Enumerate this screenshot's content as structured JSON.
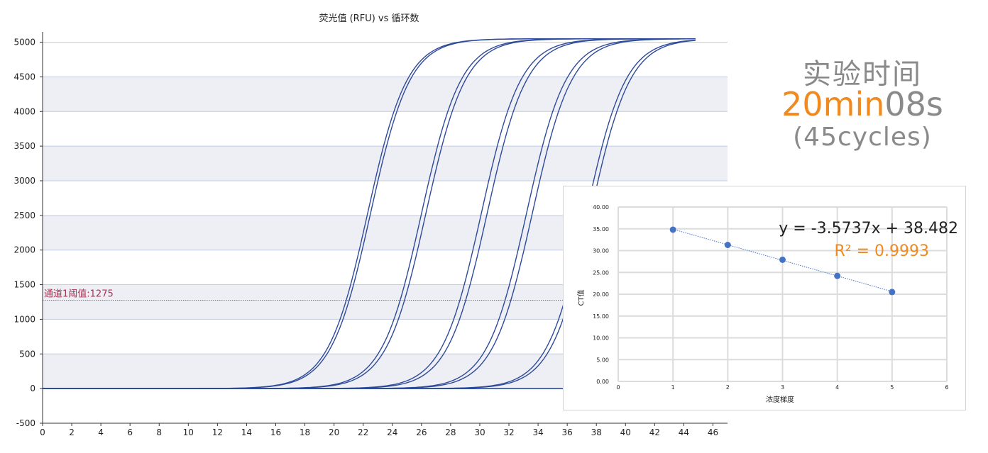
{
  "chart_data": [
    {
      "type": "line",
      "title": "荧光值 (RFU) vs 循环数",
      "xlabel": "",
      "ylabel": "",
      "xlim": [
        0,
        47
      ],
      "ylim": [
        -500,
        5200
      ],
      "x_ticks": [
        0,
        2,
        4,
        6,
        8,
        10,
        12,
        14,
        16,
        18,
        20,
        22,
        24,
        26,
        28,
        30,
        32,
        34,
        36,
        38,
        40,
        42,
        44,
        46
      ],
      "y_ticks": [
        -500,
        0,
        500,
        1000,
        1500,
        2000,
        2500,
        3000,
        3500,
        4000,
        4500,
        5000
      ],
      "grid": "horizontal",
      "line_color": "#2e4a9b",
      "threshold": {
        "label": "通道1阈值:1275",
        "value": 1275,
        "color": "#b03050"
      },
      "series_note": "10 amplification curves (5 duplicate pairs), cycles 0-45",
      "series": [
        {
          "midpoint": 22.3,
          "plateau": 5050
        },
        {
          "midpoint": 22.5,
          "plateau": 5050
        },
        {
          "midpoint": 26.0,
          "plateau": 5050
        },
        {
          "midpoint": 26.3,
          "plateau": 5050
        },
        {
          "midpoint": 30.1,
          "plateau": 5050
        },
        {
          "midpoint": 30.5,
          "plateau": 5050
        },
        {
          "midpoint": 33.2,
          "plateau": 5050
        },
        {
          "midpoint": 33.6,
          "plateau": 5050
        },
        {
          "midpoint": 37.3,
          "plateau": 5050
        },
        {
          "midpoint": 37.6,
          "plateau": 5050
        }
      ]
    },
    {
      "type": "scatter",
      "xlabel": "浓度梯度",
      "ylabel": "CT值",
      "xlim": [
        0,
        6
      ],
      "ylim": [
        0,
        40
      ],
      "x_ticks": [
        0,
        1,
        2,
        3,
        4,
        5,
        6
      ],
      "y_ticks": [
        "0.00",
        "5.00",
        "10.00",
        "15.00",
        "20.00",
        "25.00",
        "30.00",
        "35.00",
        "40.00"
      ],
      "grid": "both",
      "trendline": true,
      "equation": "y = -3.5737x + 38.482",
      "r2": "R² = 0.9993",
      "x": [
        1,
        2,
        3,
        4,
        5
      ],
      "y": [
        34.8,
        31.3,
        27.9,
        24.2,
        20.5
      ],
      "point_color": "#4472c4",
      "r2_color": "#f08a1e"
    }
  ],
  "side_panel": {
    "title": "实验时间",
    "time_minutes": "20min",
    "time_seconds": "08s",
    "cycles": "(45cycles)"
  }
}
